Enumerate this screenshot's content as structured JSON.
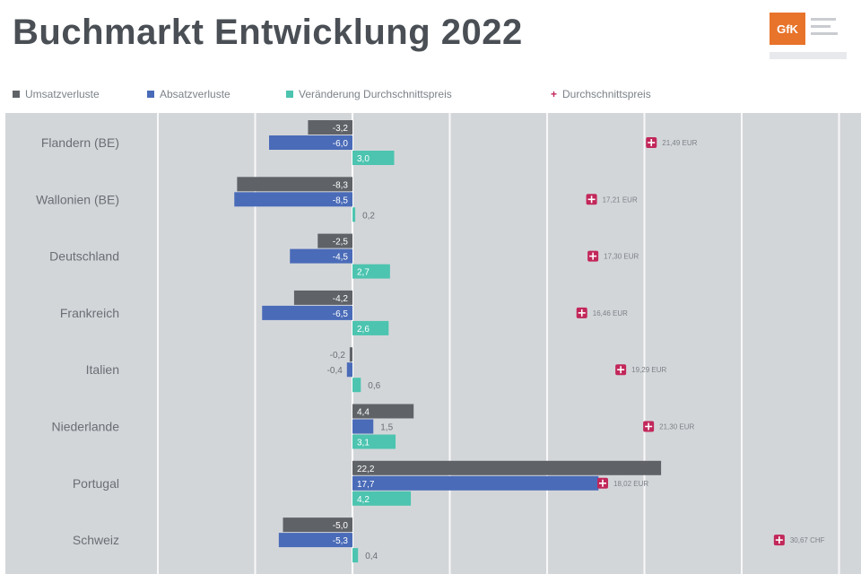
{
  "title": "Buchmarkt Entwicklung 2022",
  "logo": {
    "text": "GfK"
  },
  "chart_data": {
    "type": "bar",
    "categories": [
      "Flandern (BE)",
      "Wallonien (BE)",
      "Deutschland",
      "Frankreich",
      "Italien",
      "Niederlande",
      "Portugal",
      "Schweiz"
    ],
    "series": [
      {
        "name": "Umsatzverluste",
        "color": "#5f6368",
        "values": [
          -3.2,
          -8.3,
          -2.5,
          -4.2,
          -0.2,
          4.4,
          22.2,
          -5.0
        ]
      },
      {
        "name": "Absatzverluste",
        "color": "#4a6bb8",
        "values": [
          -6.0,
          -8.5,
          -4.5,
          -6.5,
          -0.4,
          1.5,
          17.7,
          -5.3
        ]
      },
      {
        "name": "Veränderung Durchschnittspreis",
        "color": "#4cc4b0",
        "values": [
          3.0,
          0.2,
          2.7,
          2.6,
          0.6,
          3.1,
          4.2,
          0.4
        ]
      }
    ],
    "markers": {
      "name": "Durchschnittspreis",
      "color": "#c2275a",
      "values": [
        21.5,
        17.2,
        17.3,
        16.5,
        19.3,
        21.3,
        18.0,
        30.7
      ],
      "labels": [
        "21,49 EUR",
        "17,21 EUR",
        "17,30 EUR",
        "16,46 EUR",
        "19,29 EUR",
        "21,30 EUR",
        "18,02 EUR",
        "30,67 CHF"
      ]
    },
    "xlim": [
      -14,
      36
    ],
    "grid": true,
    "legend": "top"
  }
}
